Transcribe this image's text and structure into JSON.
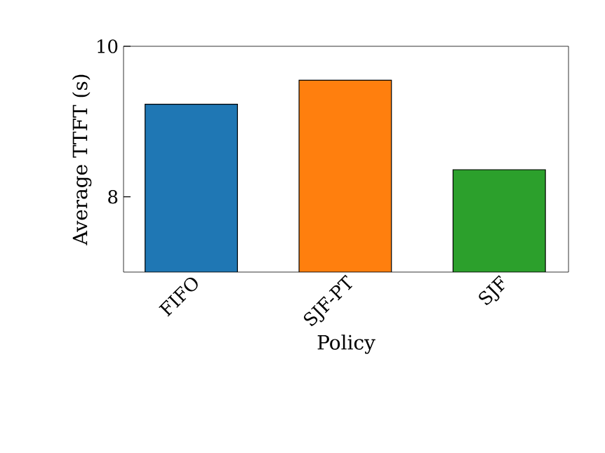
{
  "chart_data": {
    "type": "bar",
    "xlabel": "Policy",
    "ylabel": "Average TTFT (s)",
    "categories": [
      "FIFO",
      "SJF-PT",
      "SJF"
    ],
    "values": [
      9.23,
      9.55,
      8.36
    ],
    "colors": [
      "#1f77b4",
      "#ff7f0e",
      "#2ca02c"
    ],
    "ylim": [
      7,
      10
    ],
    "yticks": [
      8,
      10
    ],
    "grid": false
  }
}
